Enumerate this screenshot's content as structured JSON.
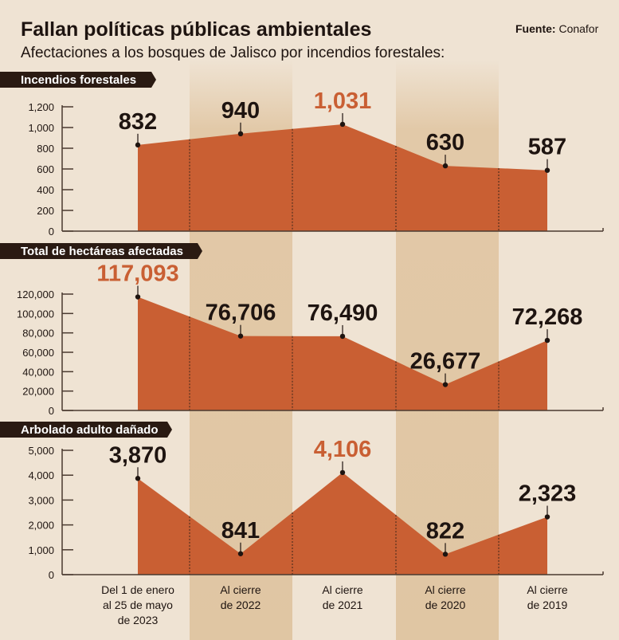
{
  "header": {
    "title": "Fallan políticas públicas ambientales",
    "subtitle": "Afectaciones a los bosques de Jalisco por incendios forestales:",
    "source_label": "Fuente:",
    "source_value": "Conafor"
  },
  "colors": {
    "background": "#efe3d3",
    "band": "#e2c9a8",
    "area": "#c95f33",
    "highlight": "#c95f33",
    "dark": "#2a1a12"
  },
  "chart_data": [
    {
      "type": "area",
      "title": "Incendios forestales",
      "categories": [
        "Del 1 de enero al 25 de mayo de 2023",
        "Al cierre de 2022",
        "Al cierre de 2021",
        "Al cierre de 2020",
        "Al cierre de 2019"
      ],
      "values": [
        832,
        940,
        1031,
        630,
        587
      ],
      "labels": [
        "832",
        "940",
        "1,031",
        "630",
        "587"
      ],
      "highlight_index": 2,
      "ylim": [
        0,
        1200
      ],
      "yticks": [
        "0",
        "200",
        "400",
        "600",
        "800",
        "1,000",
        "1,200"
      ],
      "ytick_values": [
        0,
        200,
        400,
        600,
        800,
        1000,
        1200
      ]
    },
    {
      "type": "area",
      "title": "Total de hectáreas afectadas",
      "categories": [
        "Del 1 de enero al 25 de mayo de 2023",
        "Al cierre de 2022",
        "Al cierre de 2021",
        "Al cierre de 2020",
        "Al cierre de 2019"
      ],
      "values": [
        117093,
        76706,
        76490,
        26677,
        72268
      ],
      "labels": [
        "117,093",
        "76,706",
        "76,490",
        "26,677",
        "72,268"
      ],
      "highlight_index": 0,
      "ylim": [
        0,
        120000
      ],
      "yticks": [
        "0",
        "20,000",
        "40,000",
        "60,000",
        "80,000",
        "100,000",
        "120,000"
      ],
      "ytick_values": [
        0,
        20000,
        40000,
        60000,
        80000,
        100000,
        120000
      ]
    },
    {
      "type": "area",
      "title": "Arbolado adulto dañado",
      "categories": [
        "Del 1 de enero al 25 de mayo de 2023",
        "Al cierre de 2022",
        "Al cierre de 2021",
        "Al cierre de 2020",
        "Al cierre de 2019"
      ],
      "values": [
        3870,
        841,
        4106,
        822,
        2323
      ],
      "labels": [
        "3,870",
        "841",
        "4,106",
        "822",
        "2,323"
      ],
      "highlight_index": 2,
      "ylim": [
        0,
        5000
      ],
      "yticks": [
        "0",
        "1,000",
        "2,000",
        "3,000",
        "4,000",
        "5,000"
      ],
      "ytick_values": [
        0,
        1000,
        2000,
        3000,
        4000,
        5000
      ]
    }
  ],
  "x_labels": [
    [
      "Del 1 de enero",
      "al 25 de mayo",
      "de 2023"
    ],
    [
      "Al cierre",
      "de 2022"
    ],
    [
      "Al cierre",
      "de 2021"
    ],
    [
      "Al cierre",
      "de 2020"
    ],
    [
      "Al cierre",
      "de 2019"
    ]
  ]
}
